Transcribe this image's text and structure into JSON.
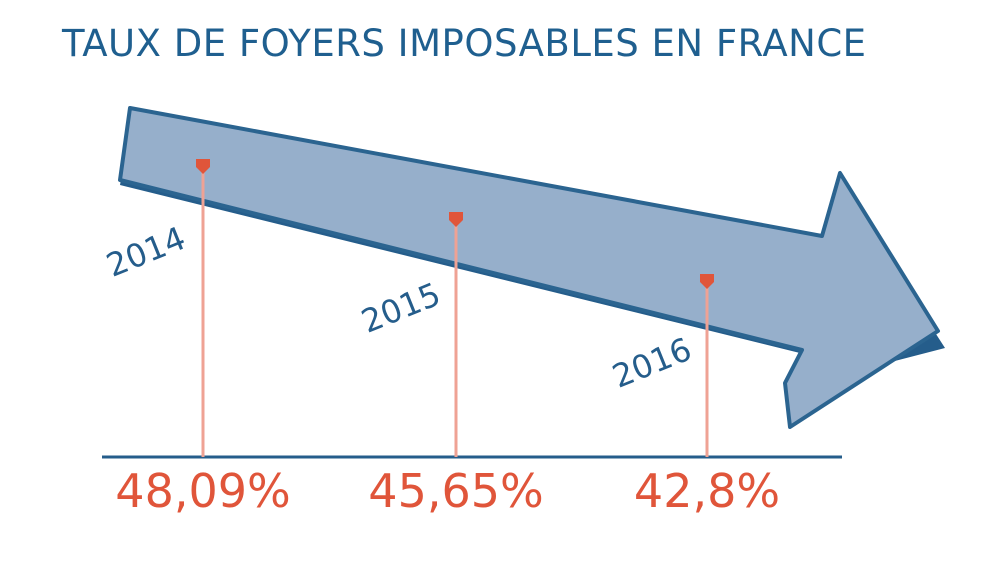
{
  "chart_data": {
    "type": "line",
    "title": "TAUX DE FOYERS IMPOSABLES EN FRANCE",
    "categories": [
      "2014",
      "2015",
      "2016"
    ],
    "values": [
      48.09,
      45.65,
      42.8
    ],
    "value_labels": [
      "48,09%",
      "45,65%",
      "42,8%"
    ],
    "unit": "%",
    "colors": {
      "title": "#1f5f8f",
      "arrow_fill": "#96afcb",
      "arrow_stroke": "#2b6490",
      "arrow_shadow": "#255d8b",
      "year_labels": "#255d8b",
      "markers": "#e0553a",
      "value_labels": "#e0553a",
      "stems": "#efa294",
      "baseline": "#255d8b"
    }
  }
}
